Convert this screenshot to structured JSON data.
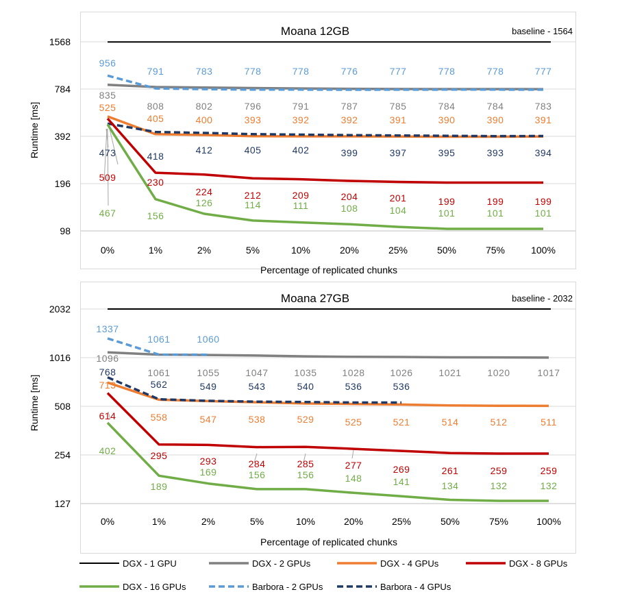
{
  "colors": {
    "dgx1": "#000000",
    "dgx2": "#808080",
    "dgx4": "#ED7D31",
    "dgx8": "#C00000",
    "dgx16": "#70AD47",
    "barbora2": "#5B9BD5",
    "barbora4": "#1F3864",
    "grid": "#D9D9D9",
    "axis": "#404040"
  },
  "legend": {
    "items": [
      {
        "key": "dgx1",
        "label": "DGX - 1 GPU",
        "dash": false
      },
      {
        "key": "dgx2",
        "label": "DGX - 2 GPUs",
        "dash": false
      },
      {
        "key": "dgx4",
        "label": "DGX - 4 GPUs",
        "dash": false
      },
      {
        "key": "dgx8",
        "label": "DGX - 8 GPUs",
        "dash": false
      },
      {
        "key": "dgx16",
        "label": "DGX - 16 GPUs",
        "dash": false
      },
      {
        "key": "barbora2",
        "label": "Barbora - 2 GPUs",
        "dash": true
      },
      {
        "key": "barbora4",
        "label": "Barbora - 4 GPUs",
        "dash": true
      }
    ]
  },
  "chart_data": [
    {
      "type": "line",
      "title": "Moana 12GB",
      "annotation": "baseline - 1564",
      "xlabel": "Percentage of replicated chunks",
      "ylabel": "Runtime [ms]",
      "yscale": "log2",
      "yticks": [
        98,
        196,
        392,
        784,
        1568
      ],
      "ylim": [
        98,
        1568
      ],
      "categories": [
        "0%",
        "1%",
        "2%",
        "5%",
        "10%",
        "20%",
        "25%",
        "50%",
        "75%",
        "100%"
      ],
      "grid": "horizontal",
      "series": [
        {
          "key": "dgx1",
          "name": "DGX - 1 GPU",
          "values": [
            1564,
            1564,
            1564,
            1564,
            1564,
            1564,
            1564,
            1564,
            1564,
            1564
          ]
        },
        {
          "key": "dgx2",
          "name": "DGX - 2 GPUs",
          "values": [
            835,
            808,
            802,
            796,
            791,
            787,
            785,
            784,
            784,
            783
          ]
        },
        {
          "key": "dgx4",
          "name": "DGX - 4 GPUs",
          "values": [
            525,
            405,
            400,
            393,
            392,
            392,
            391,
            390,
            390,
            391
          ]
        },
        {
          "key": "dgx8",
          "name": "DGX - 8 GPUs",
          "values": [
            509,
            230,
            224,
            212,
            209,
            204,
            201,
            199,
            199,
            199
          ]
        },
        {
          "key": "dgx16",
          "name": "DGX - 16 GPUs",
          "values": [
            467,
            156,
            126,
            114,
            111,
            108,
            104,
            101,
            101,
            101
          ]
        },
        {
          "key": "barbora2",
          "name": "Barbora - 2 GPUs",
          "values": [
            956,
            791,
            783,
            778,
            778,
            776,
            777,
            778,
            778,
            777
          ]
        },
        {
          "key": "barbora4",
          "name": "Barbora - 4 GPUs",
          "values": [
            473,
            418,
            412,
            405,
            402,
            399,
            397,
            395,
            393,
            394
          ]
        }
      ],
      "data_labels": [
        {
          "key": "barbora2",
          "texts": [
            "956",
            "791",
            "783",
            "778",
            "778",
            "776",
            "777",
            "778",
            "778",
            "777"
          ]
        },
        {
          "key": "dgx2",
          "texts": [
            "835",
            "808",
            "802",
            "796",
            "791",
            "787",
            "785",
            "784",
            "784",
            "783"
          ]
        },
        {
          "key": "dgx4",
          "texts": [
            "525",
            "405",
            "400",
            "393",
            "392",
            "392",
            "391",
            "390",
            "390",
            "391"
          ]
        },
        {
          "key": "barbora4",
          "texts": [
            "473",
            "418",
            "412",
            "405",
            "402",
            "399",
            "397",
            "395",
            "393",
            "394"
          ]
        },
        {
          "key": "dgx8",
          "texts": [
            "509",
            "230",
            "224",
            "212",
            "209",
            "204",
            "201",
            "199",
            "199",
            "199"
          ]
        },
        {
          "key": "dgx16",
          "texts": [
            "467",
            "156",
            "126",
            "114",
            "111",
            "108",
            "104",
            "101",
            "101",
            "101"
          ]
        }
      ]
    },
    {
      "type": "line",
      "title": "Moana 27GB",
      "annotation": "baseline - 2032",
      "xlabel": "Percentage of replicated chunks",
      "ylabel": "Runtime [ms]",
      "yscale": "log2",
      "yticks": [
        127,
        254,
        508,
        1016,
        2032
      ],
      "ylim": [
        127,
        2032
      ],
      "categories": [
        "0%",
        "1%",
        "2%",
        "5%",
        "10%",
        "20%",
        "25%",
        "50%",
        "75%",
        "100%"
      ],
      "grid": "horizontal",
      "series": [
        {
          "key": "dgx1",
          "name": "DGX - 1 GPU",
          "values": [
            2032,
            2032,
            2032,
            2032,
            2032,
            2032,
            2032,
            2032,
            2032,
            2032
          ]
        },
        {
          "key": "dgx2",
          "name": "DGX - 2 GPUs",
          "values": [
            1096,
            1061,
            1055,
            1047,
            1035,
            1028,
            1026,
            1021,
            1020,
            1017
          ]
        },
        {
          "key": "dgx4",
          "name": "DGX - 4 GPUs",
          "values": [
            713,
            558,
            547,
            538,
            529,
            525,
            521,
            514,
            512,
            511
          ]
        },
        {
          "key": "dgx8",
          "name": "DGX - 8 GPUs",
          "values": [
            614,
            295,
            293,
            284,
            285,
            277,
            269,
            261,
            259,
            259
          ]
        },
        {
          "key": "dgx16",
          "name": "DGX - 16 GPUs",
          "values": [
            402,
            189,
            169,
            156,
            156,
            148,
            141,
            134,
            132,
            132
          ]
        },
        {
          "key": "barbora2",
          "name": "Barbora - 2 GPUs",
          "values": [
            1337,
            1061,
            1060,
            null,
            null,
            null,
            null,
            null,
            null,
            null
          ]
        },
        {
          "key": "barbora4",
          "name": "Barbora - 4 GPUs",
          "values": [
            768,
            562,
            549,
            543,
            540,
            536,
            536,
            null,
            null,
            null
          ]
        }
      ],
      "data_labels": [
        {
          "key": "barbora2",
          "texts": [
            "1337",
            "1061",
            "1060",
            null,
            null,
            null,
            null,
            null,
            null,
            null
          ]
        },
        {
          "key": "dgx2",
          "texts": [
            "1096",
            "1061",
            "1055",
            "1047",
            "1035",
            "1028",
            "1026",
            "1021",
            "1020",
            "1017"
          ]
        },
        {
          "key": "barbora4",
          "texts": [
            "768",
            "562",
            "549",
            "543",
            "540",
            "536",
            "536",
            null,
            null,
            null
          ]
        },
        {
          "key": "dgx4",
          "texts": [
            "713",
            "558",
            "547",
            "538",
            "529",
            "525",
            "521",
            "514",
            "512",
            "511"
          ]
        },
        {
          "key": "dgx8",
          "texts": [
            "614",
            "295",
            "293",
            "284",
            "285",
            "277",
            "269",
            "261",
            "259",
            "259"
          ]
        },
        {
          "key": "dgx16",
          "texts": [
            "402",
            "189",
            "169",
            "156",
            "156",
            "148",
            "141",
            "134",
            "132",
            "132"
          ]
        }
      ]
    }
  ]
}
